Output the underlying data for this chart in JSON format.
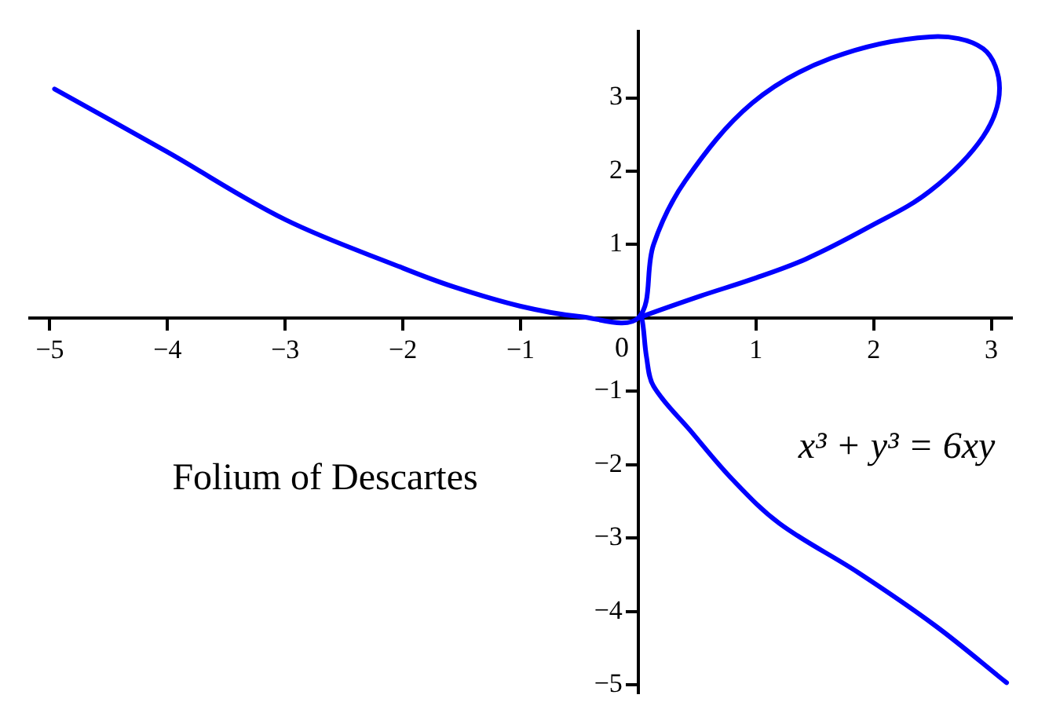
{
  "chart_data": {
    "type": "line",
    "annotations": [
      "Folium of Descartes",
      "x³ + y³ = 6xy"
    ],
    "xlim": [
      -5.17,
      3.17
    ],
    "ylim": [
      -5.1,
      3.9
    ],
    "xticks": [
      {
        "value": -5,
        "label": "−5"
      },
      {
        "value": -4,
        "label": "−4"
      },
      {
        "value": -3,
        "label": "−3"
      },
      {
        "value": -2,
        "label": "−2"
      },
      {
        "value": -1,
        "label": "−1"
      },
      {
        "value": 0,
        "label": "0"
      },
      1,
      2,
      3
    ],
    "yticks": [
      {
        "value": -5,
        "label": "−5"
      },
      {
        "value": -4,
        "label": "−4"
      },
      {
        "value": -3,
        "label": "−3"
      },
      {
        "value": -2,
        "label": "−2"
      },
      {
        "value": -1,
        "label": "−1"
      },
      1,
      2,
      3
    ],
    "series": [
      {
        "color": "#0000ff",
        "x": [
          -4.96,
          -4,
          -3,
          -2,
          -1.56,
          -1,
          -0.5,
          0,
          0.13,
          0.4,
          0.97,
          1.64,
          2.48,
          2.93,
          3.07,
          2.93,
          2.48,
          1.95,
          1.42,
          0.97,
          0.53,
          0,
          0.03,
          0.07,
          0.13,
          0.44,
          0.8,
          1.2,
          1.87,
          2.53,
          3.13
        ],
        "values": [
          3.12,
          2.26,
          1.34,
          0.68,
          0.42,
          0.16,
          0.02,
          0,
          1,
          1.87,
          2.93,
          3.54,
          3.83,
          3.67,
          3.13,
          2.47,
          1.73,
          1.23,
          0.8,
          0.53,
          0.3,
          0,
          0,
          -0.53,
          -0.93,
          -1.53,
          -2.2,
          -2.8,
          -3.47,
          -4.2,
          -4.97
        ]
      }
    ]
  }
}
